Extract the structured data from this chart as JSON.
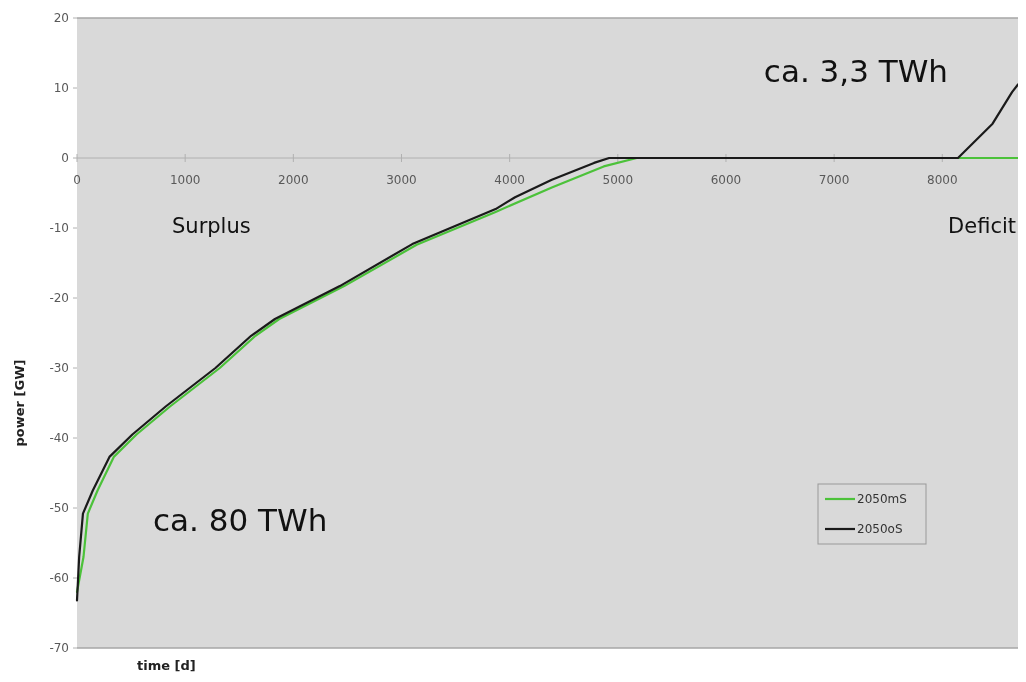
{
  "chart_data": {
    "type": "line",
    "xlabel": "time [d]",
    "ylabel": "power [GW]",
    "xlim": [
      0,
      8700
    ],
    "ylim": [
      -70,
      20
    ],
    "xticks": [
      0,
      1000,
      2000,
      3000,
      4000,
      5000,
      6000,
      7000,
      8000
    ],
    "yticks": [
      -70,
      -60,
      -50,
      -40,
      -30,
      -20,
      -10,
      0,
      10,
      20
    ],
    "grid": false,
    "legend": "bottom right",
    "marker": "none",
    "line_style": "solid",
    "annotations": [
      "Surplus",
      "Deficit",
      "ca. 80 TWh",
      "ca. 3,3 TWh"
    ],
    "series": [
      {
        "name": "2050mS",
        "color": "#4cc23a",
        "x": [
          0,
          60,
          100,
          190,
          340,
          550,
          860,
          1320,
          1650,
          1870,
          2470,
          3140,
          3870,
          4390,
          4870,
          5175,
          8000,
          8700
        ],
        "values": [
          -62,
          -57,
          -50.8,
          -47.5,
          -42.7,
          -39.5,
          -35.5,
          -30,
          -25.4,
          -23,
          -18.3,
          -12.4,
          -7.7,
          -4.2,
          -1.2,
          0,
          0,
          0
        ]
      },
      {
        "name": "2050oS",
        "color": "#1a1a1a",
        "x": [
          0,
          20,
          55,
          146,
          300,
          512,
          820,
          1280,
          1610,
          1830,
          2430,
          3100,
          3870,
          4050,
          4390,
          4780,
          4920,
          6000,
          7000,
          8145,
          8465,
          8645,
          8700
        ],
        "values": [
          -63.2,
          -57,
          -50.8,
          -47.5,
          -42.7,
          -39.5,
          -35.5,
          -30,
          -25.4,
          -23,
          -18.3,
          -12.3,
          -7.3,
          -5.6,
          -3.1,
          -0.7,
          0,
          0,
          0,
          0,
          4.9,
          9.4,
          10.5
        ]
      }
    ]
  }
}
